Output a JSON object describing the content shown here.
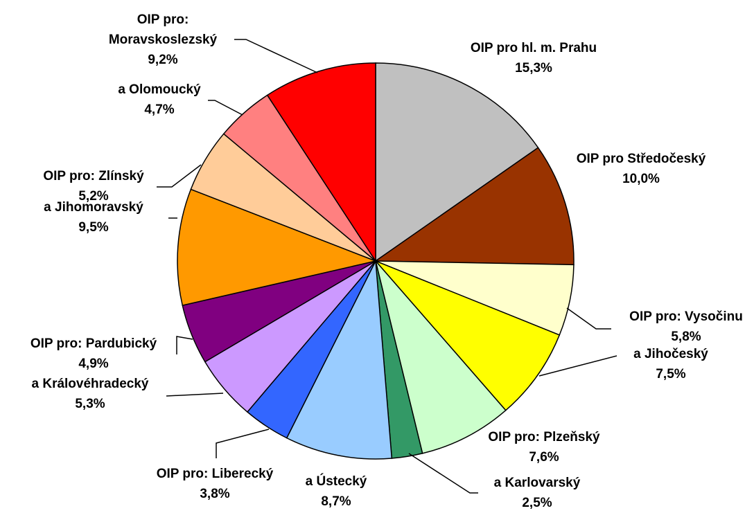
{
  "chart_data": {
    "type": "pie",
    "categories": [
      "OIP pro hl. m. Prahu",
      "OIP pro Středočeský",
      "OIP pro: Vysočinu",
      "a Jihočeský",
      "OIP pro: Plzeňský",
      "a Karlovarský",
      "a Ústecký",
      "OIP pro: Liberecký",
      "a Královéhradecký",
      "OIP pro: Pardubický",
      "a Jihomoravský",
      "OIP pro: Zlínský",
      "a Olomoucký",
      "OIP pro: Moravskoslezský"
    ],
    "values": [
      15.3,
      10.0,
      5.8,
      7.5,
      7.6,
      2.5,
      8.7,
      3.8,
      5.3,
      4.9,
      9.5,
      5.2,
      4.7,
      9.2
    ],
    "value_labels": [
      "15,3%",
      "10,0%",
      "5,8%",
      "7,5%",
      "7,6%",
      "2,5%",
      "8,7%",
      "3,8%",
      "5,3%",
      "4,9%",
      "9,5%",
      "5,2%",
      "4,7%",
      "9,2%"
    ],
    "colors": [
      "#c0c0c0",
      "#993300",
      "#ffffcc",
      "#ffff00",
      "#ccffcc",
      "#339966",
      "#99ccff",
      "#3366ff",
      "#cc99ff",
      "#800080",
      "#ff9900",
      "#ffcc99",
      "#ff8080",
      "#ff0000"
    ]
  }
}
